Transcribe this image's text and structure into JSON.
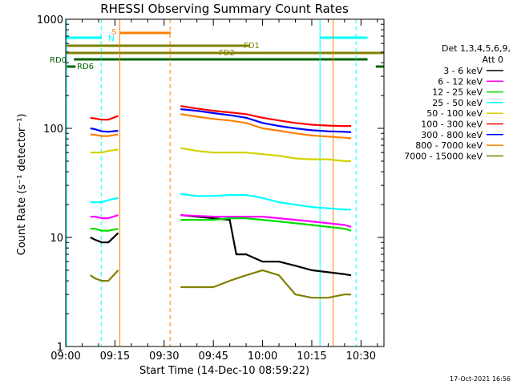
{
  "chart_data": {
    "type": "line",
    "title": "RHESSI Observing Summary Count Rates",
    "xlabel": "Start Time (14-Dec-10 08:59:22)",
    "ylabel": "Count Rate (s⁻¹ detector⁻¹)",
    "yscale": "log",
    "ylim": [
      1,
      1000
    ],
    "xlim_minutes": [
      0,
      97
    ],
    "yticks": [
      {
        "value": 1,
        "label": "1"
      },
      {
        "value": 10,
        "label": "10"
      },
      {
        "value": 100,
        "label": "100"
      },
      {
        "value": 1000,
        "label": "1000"
      }
    ],
    "xticks": [
      {
        "value": 0,
        "label": "09:00"
      },
      {
        "value": 15,
        "label": "09:15"
      },
      {
        "value": 30,
        "label": "09:30"
      },
      {
        "value": 45,
        "label": "09:45"
      },
      {
        "value": 60,
        "label": "10:00"
      },
      {
        "value": 75,
        "label": "10:15"
      },
      {
        "value": 90,
        "label": "10:30"
      }
    ],
    "legend": {
      "header1": "Det 1,3,4,5,6,9,",
      "header2": "Att 0",
      "placement": "right"
    },
    "footer_date": "17-Oct-2021 16:56",
    "series": [
      {
        "name": "3 - 6 keV",
        "color": "#000000",
        "segments": [
          {
            "x": [
              7.5,
              9,
              11,
              13,
              16
            ],
            "y": [
              10,
              9.5,
              9,
              9,
              11
            ]
          },
          {
            "x": [
              35,
              45,
              50,
              52,
              55,
              60,
              65,
              70,
              75,
              80,
              85,
              87
            ],
            "y": [
              16,
              15,
              14.5,
              7,
              7,
              6,
              6,
              5.5,
              5,
              4.8,
              4.6,
              4.5
            ]
          }
        ]
      },
      {
        "name": "6 - 12 keV",
        "color": "#ff00ff",
        "segments": [
          {
            "x": [
              7.5,
              9,
              11,
              13,
              16
            ],
            "y": [
              15.5,
              15.5,
              15,
              15,
              16
            ]
          },
          {
            "x": [
              35,
              45,
              55,
              60,
              65,
              70,
              75,
              80,
              85,
              87
            ],
            "y": [
              16,
              15.5,
              15.5,
              15.5,
              15,
              14.5,
              14,
              13.5,
              13,
              12.5
            ]
          }
        ]
      },
      {
        "name": "12 - 25 keV",
        "color": "#00dd00",
        "segments": [
          {
            "x": [
              7.5,
              9,
              11,
              13,
              16
            ],
            "y": [
              12,
              12,
              11.5,
              11.5,
              12
            ]
          },
          {
            "x": [
              35,
              40,
              45,
              50,
              55,
              60,
              65,
              70,
              75,
              80,
              85,
              87
            ],
            "y": [
              14.5,
              14.5,
              14.5,
              15,
              15,
              14.5,
              14,
              13.5,
              13,
              12.5,
              12,
              11.5
            ]
          }
        ]
      },
      {
        "name": "25 - 50 keV",
        "color": "#00ffff",
        "segments": [
          {
            "x": [
              7.5,
              9,
              11,
              13,
              16
            ],
            "y": [
              21,
              21,
              21,
              22,
              23
            ]
          },
          {
            "x": [
              35,
              40,
              45,
              50,
              55,
              60,
              65,
              70,
              75,
              80,
              85,
              87
            ],
            "y": [
              25,
              24,
              24,
              24.5,
              24.5,
              23,
              21,
              20,
              19,
              18.5,
              18,
              18
            ]
          }
        ]
      },
      {
        "name": "50 - 100 keV",
        "color": "#d2d200",
        "segments": [
          {
            "x": [
              7.5,
              9,
              11,
              13,
              16
            ],
            "y": [
              60,
              60,
              60,
              62,
              64
            ]
          },
          {
            "x": [
              35,
              40,
              45,
              50,
              55,
              60,
              65,
              70,
              75,
              80,
              85,
              87
            ],
            "y": [
              66,
              62,
              60,
              60,
              60,
              58,
              56,
              53,
              52,
              52,
              50,
              50
            ]
          }
        ]
      },
      {
        "name": "100 - 300 keV",
        "color": "#ff0000",
        "segments": [
          {
            "x": [
              7.5,
              9,
              11,
              13,
              16
            ],
            "y": [
              125,
              123,
              120,
              120,
              130
            ]
          },
          {
            "x": [
              35,
              40,
              45,
              50,
              55,
              60,
              65,
              70,
              75,
              80,
              85,
              87
            ],
            "y": [
              160,
              152,
              145,
              140,
              135,
              125,
              118,
              112,
              108,
              106,
              105,
              105
            ]
          }
        ]
      },
      {
        "name": "300 - 800 keV",
        "color": "#0000ff",
        "segments": [
          {
            "x": [
              7.5,
              9,
              11,
              13,
              16
            ],
            "y": [
              100,
              98,
              94,
              93,
              95
            ]
          },
          {
            "x": [
              35,
              40,
              45,
              50,
              55,
              60,
              65,
              70,
              75,
              80,
              85,
              87
            ],
            "y": [
              150,
              145,
              138,
              132,
              125,
              112,
              105,
              100,
              96,
              94,
              93,
              92
            ]
          }
        ]
      },
      {
        "name": "800 - 7000 keV",
        "color": "#ff8000",
        "segments": [
          {
            "x": [
              7.5,
              9,
              11,
              13,
              16
            ],
            "y": [
              88,
              87,
              85,
              85,
              88
            ]
          },
          {
            "x": [
              35,
              40,
              45,
              50,
              55,
              60,
              65,
              70,
              75,
              80,
              85,
              87
            ],
            "y": [
              135,
              128,
              122,
              118,
              112,
              100,
              95,
              90,
              86,
              84,
              82,
              81
            ]
          }
        ]
      },
      {
        "name": "7000 - 15000 keV",
        "color": "#808000",
        "segments": [
          {
            "x": [
              7.5,
              9,
              11,
              13,
              16
            ],
            "y": [
              4.5,
              4.2,
              4,
              4,
              5
            ]
          },
          {
            "x": [
              35,
              40,
              45,
              50,
              55,
              60,
              65,
              70,
              75,
              80,
              85,
              87
            ],
            "y": [
              3.5,
              3.5,
              3.5,
              4,
              4.5,
              5,
              4.5,
              3,
              2.8,
              2.8,
              3,
              3
            ]
          }
        ]
      }
    ],
    "vertical_markers": [
      {
        "x": 0.3,
        "color": "#00ffff",
        "style": "solid"
      },
      {
        "x": 10.8,
        "color": "#00ffff",
        "style": "dashed"
      },
      {
        "x": 16.5,
        "color": "#ff8000",
        "style": "solid"
      },
      {
        "x": 31.8,
        "color": "#ff8000",
        "style": "dashed"
      },
      {
        "x": 77.5,
        "color": "#00ffff",
        "style": "solid"
      },
      {
        "x": 81.5,
        "color": "#ff8000",
        "style": "solid"
      },
      {
        "x": 88.5,
        "color": "#00ffff",
        "style": "dashed"
      }
    ],
    "flag_bars": [
      {
        "label": "N",
        "color": "#00ffff",
        "segments": [
          [
            0,
            11
          ],
          [
            77.5,
            92
          ]
        ]
      },
      {
        "label": "S",
        "color": "#ff8000",
        "segments": [
          [
            16.5,
            32
          ]
        ]
      },
      {
        "label": "FD1",
        "color": "#808000",
        "segments": [
          [
            0,
            56
          ]
        ]
      },
      {
        "label": "FD2",
        "color": "#808000",
        "segments": [
          [
            0,
            97
          ]
        ]
      },
      {
        "label": "RD0",
        "color": "#006400",
        "segments": [
          [
            2.5,
            92
          ]
        ]
      },
      {
        "label": "RD6",
        "color": "#006400",
        "segments": [
          [
            0,
            3
          ],
          [
            94.5,
            97
          ]
        ]
      }
    ]
  }
}
